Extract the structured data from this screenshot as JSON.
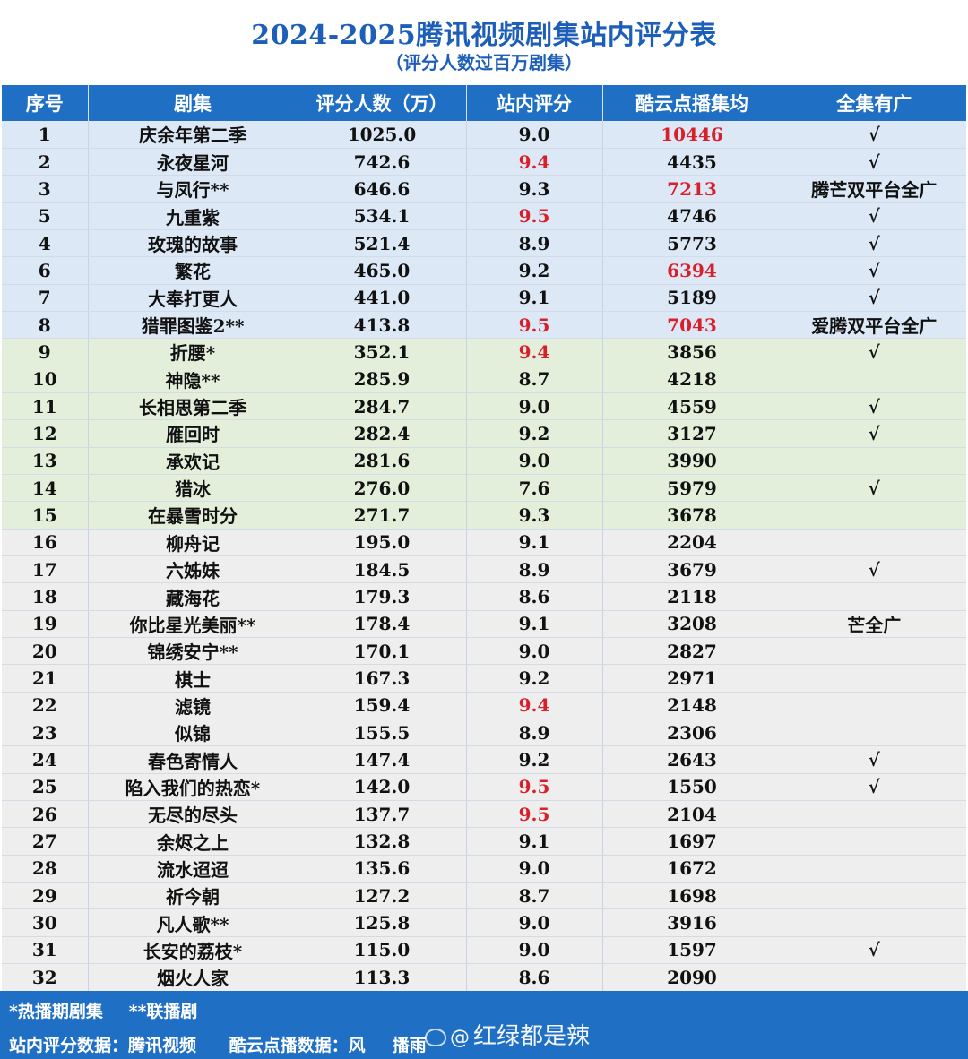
{
  "header": {
    "title": "2024-2025腾讯视频剧集站内评分表",
    "subtitle": "（评分人数过百万剧集）"
  },
  "columns": [
    "序号",
    "剧集",
    "评分人数（万）",
    "站内评分",
    "酷云点播集均",
    "全集有广"
  ],
  "colors": {
    "header_blue": "#1f6fc5",
    "red": "#d8202a",
    "band_blue": "#dde8f6",
    "band_green": "#e4efdb",
    "band_gray": "#eeeeee"
  },
  "rows": [
    {
      "no": "1",
      "name": "庆余年第二季",
      "count": "1025.0",
      "score": "9.0",
      "score_red": false,
      "avg": "10446",
      "avg_red": true,
      "ad": "√",
      "band": "blue"
    },
    {
      "no": "2",
      "name": "永夜星河",
      "count": "742.6",
      "score": "9.4",
      "score_red": true,
      "avg": "4435",
      "avg_red": false,
      "ad": "√",
      "band": "blue"
    },
    {
      "no": "3",
      "name": "与凤行**",
      "count": "646.6",
      "score": "9.3",
      "score_red": false,
      "avg": "7213",
      "avg_red": true,
      "ad": "腾芒双平台全广",
      "band": "blue"
    },
    {
      "no": "5",
      "name": "九重紫",
      "count": "534.1",
      "score": "9.5",
      "score_red": true,
      "avg": "4746",
      "avg_red": false,
      "ad": "√",
      "band": "blue"
    },
    {
      "no": "4",
      "name": "玫瑰的故事",
      "count": "521.4",
      "score": "8.9",
      "score_red": false,
      "avg": "5773",
      "avg_red": false,
      "ad": "√",
      "band": "blue"
    },
    {
      "no": "6",
      "name": "繁花",
      "count": "465.0",
      "score": "9.2",
      "score_red": false,
      "avg": "6394",
      "avg_red": true,
      "ad": "√",
      "band": "blue"
    },
    {
      "no": "7",
      "name": "大奉打更人",
      "count": "441.0",
      "score": "9.1",
      "score_red": false,
      "avg": "5189",
      "avg_red": false,
      "ad": "√",
      "band": "blue"
    },
    {
      "no": "8",
      "name": "猎罪图鉴2**",
      "count": "413.8",
      "score": "9.5",
      "score_red": true,
      "avg": "7043",
      "avg_red": true,
      "ad": "爱腾双平台全广",
      "band": "blue"
    },
    {
      "no": "9",
      "name": "折腰*",
      "count": "352.1",
      "score": "9.4",
      "score_red": true,
      "avg": "3856",
      "avg_red": false,
      "ad": "√",
      "band": "green"
    },
    {
      "no": "10",
      "name": "神隐**",
      "count": "285.9",
      "score": "8.7",
      "score_red": false,
      "avg": "4218",
      "avg_red": false,
      "ad": "",
      "band": "green"
    },
    {
      "no": "11",
      "name": "长相思第二季",
      "count": "284.7",
      "score": "9.0",
      "score_red": false,
      "avg": "4559",
      "avg_red": false,
      "ad": "√",
      "band": "green"
    },
    {
      "no": "12",
      "name": "雁回时",
      "count": "282.4",
      "score": "9.2",
      "score_red": false,
      "avg": "3127",
      "avg_red": false,
      "ad": "√",
      "band": "green"
    },
    {
      "no": "13",
      "name": "承欢记",
      "count": "281.6",
      "score": "9.0",
      "score_red": false,
      "avg": "3990",
      "avg_red": false,
      "ad": "",
      "band": "green"
    },
    {
      "no": "14",
      "name": "猎冰",
      "count": "276.0",
      "score": "7.6",
      "score_red": false,
      "avg": "5979",
      "avg_red": false,
      "ad": "√",
      "band": "green"
    },
    {
      "no": "15",
      "name": "在暴雪时分",
      "count": "271.7",
      "score": "9.3",
      "score_red": false,
      "avg": "3678",
      "avg_red": false,
      "ad": "",
      "band": "green"
    },
    {
      "no": "16",
      "name": "柳舟记",
      "count": "195.0",
      "score": "9.1",
      "score_red": false,
      "avg": "2204",
      "avg_red": false,
      "ad": "",
      "band": "gray"
    },
    {
      "no": "17",
      "name": "六姊妹",
      "count": "184.5",
      "score": "8.9",
      "score_red": false,
      "avg": "3679",
      "avg_red": false,
      "ad": "√",
      "band": "gray"
    },
    {
      "no": "18",
      "name": "藏海花",
      "count": "179.3",
      "score": "8.6",
      "score_red": false,
      "avg": "2118",
      "avg_red": false,
      "ad": "",
      "band": "gray"
    },
    {
      "no": "19",
      "name": "你比星光美丽**",
      "count": "178.4",
      "score": "9.1",
      "score_red": false,
      "avg": "3208",
      "avg_red": false,
      "ad": "芒全广",
      "band": "gray"
    },
    {
      "no": "20",
      "name": "锦绣安宁**",
      "count": "170.1",
      "score": "9.0",
      "score_red": false,
      "avg": "2827",
      "avg_red": false,
      "ad": "",
      "band": "gray"
    },
    {
      "no": "21",
      "name": "棋士",
      "count": "167.3",
      "score": "9.2",
      "score_red": false,
      "avg": "2971",
      "avg_red": false,
      "ad": "",
      "band": "gray"
    },
    {
      "no": "22",
      "name": "滤镜",
      "count": "159.4",
      "score": "9.4",
      "score_red": true,
      "avg": "2148",
      "avg_red": false,
      "ad": "",
      "band": "gray"
    },
    {
      "no": "23",
      "name": "似锦",
      "count": "155.5",
      "score": "8.9",
      "score_red": false,
      "avg": "2306",
      "avg_red": false,
      "ad": "",
      "band": "gray"
    },
    {
      "no": "24",
      "name": "春色寄情人",
      "count": "147.4",
      "score": "9.2",
      "score_red": false,
      "avg": "2643",
      "avg_red": false,
      "ad": "√",
      "band": "gray"
    },
    {
      "no": "25",
      "name": "陷入我们的热恋*",
      "count": "142.0",
      "score": "9.5",
      "score_red": true,
      "avg": "1550",
      "avg_red": false,
      "ad": "√",
      "band": "gray"
    },
    {
      "no": "26",
      "name": "无尽的尽头",
      "count": "137.7",
      "score": "9.5",
      "score_red": true,
      "avg": "2104",
      "avg_red": false,
      "ad": "",
      "band": "gray"
    },
    {
      "no": "27",
      "name": "余烬之上",
      "count": "132.8",
      "score": "9.1",
      "score_red": false,
      "avg": "1697",
      "avg_red": false,
      "ad": "",
      "band": "gray"
    },
    {
      "no": "28",
      "name": "流水迢迢",
      "count": "135.6",
      "score": "9.0",
      "score_red": false,
      "avg": "1672",
      "avg_red": false,
      "ad": "",
      "band": "gray"
    },
    {
      "no": "29",
      "name": "祈今朝",
      "count": "127.2",
      "score": "8.7",
      "score_red": false,
      "avg": "1698",
      "avg_red": false,
      "ad": "",
      "band": "gray"
    },
    {
      "no": "30",
      "name": "凡人歌**",
      "count": "125.8",
      "score": "9.0",
      "score_red": false,
      "avg": "3916",
      "avg_red": false,
      "ad": "",
      "band": "gray"
    },
    {
      "no": "31",
      "name": "长安的荔枝*",
      "count": "115.0",
      "score": "9.0",
      "score_red": false,
      "avg": "1597",
      "avg_red": false,
      "ad": "√",
      "band": "gray"
    },
    {
      "no": "32",
      "name": "烟火人家",
      "count": "113.3",
      "score": "8.6",
      "score_red": false,
      "avg": "2090",
      "avg_red": false,
      "ad": "",
      "band": "gray"
    }
  ],
  "footer": {
    "note_airing": "*热播期剧集",
    "note_simulcast": "**联播剧",
    "source_score": "站内评分数据：腾讯视频",
    "source_kuyun": "酷云点播数据：风",
    "source_kuyun_tail": "播雨"
  },
  "watermark": {
    "at": "@",
    "text": "红绿都是辣"
  }
}
